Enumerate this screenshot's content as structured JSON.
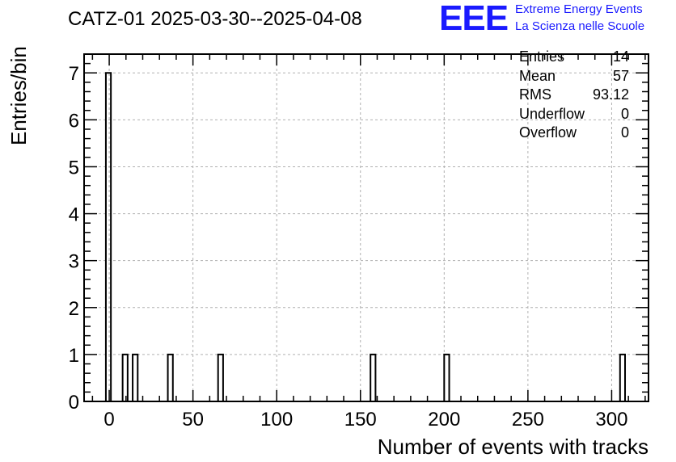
{
  "header": {
    "title": "CATZ-01 2025-03-30--2025-04-08",
    "logo_text": "EEE",
    "logo_line1": "Extreme Energy Events",
    "logo_line2": "La Scienza nelle Scuole"
  },
  "stats": [
    {
      "label": "Entries",
      "value": "14"
    },
    {
      "label": "Mean",
      "value": "57"
    },
    {
      "label": "RMS",
      "value": "93.12"
    },
    {
      "label": "Underflow",
      "value": "0"
    },
    {
      "label": "Overflow",
      "value": "0"
    }
  ],
  "chart_data": {
    "type": "bar",
    "title": "CATZ-01 2025-03-30--2025-04-08",
    "xlabel": "Number of events with tracks",
    "ylabel": "Entries/bin",
    "xlim": [
      -15,
      322
    ],
    "ylim": [
      0,
      7.4
    ],
    "grid": true,
    "bin_width": 3,
    "bins": [
      {
        "x0": -2,
        "x1": 1,
        "count": 7
      },
      {
        "x0": 8,
        "x1": 11,
        "count": 1
      },
      {
        "x0": 14,
        "x1": 17,
        "count": 1
      },
      {
        "x0": 35,
        "x1": 38,
        "count": 1
      },
      {
        "x0": 65,
        "x1": 68,
        "count": 1
      },
      {
        "x0": 156,
        "x1": 159,
        "count": 1
      },
      {
        "x0": 200,
        "x1": 203,
        "count": 1
      },
      {
        "x0": 305,
        "x1": 308,
        "count": 1
      }
    ],
    "x_ticks": [
      0,
      50,
      100,
      150,
      200,
      250,
      300
    ],
    "y_ticks": [
      0,
      1,
      2,
      3,
      4,
      5,
      6,
      7
    ],
    "colors": {
      "line": "#000000",
      "grid": "#b0b0b0",
      "logo": "#1a1aff"
    }
  }
}
